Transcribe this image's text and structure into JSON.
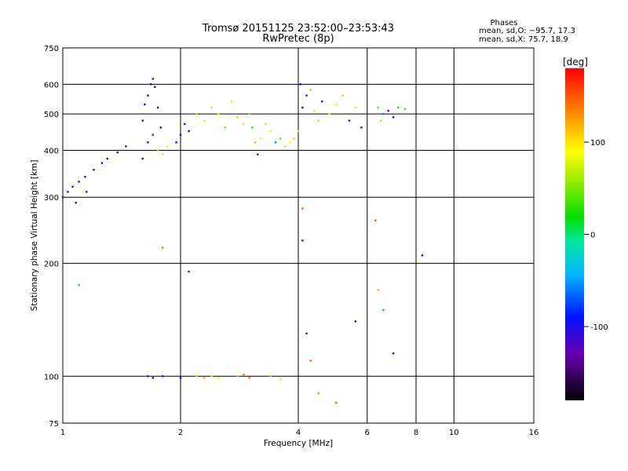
{
  "chart_data": {
    "type": "scatter",
    "title": "Tromsø 20151125 23:52:00–23:53:43",
    "subtitle": "RwPretec (8p)",
    "xlabel": "Frequency [MHz]",
    "ylabel": "Stationary phase Virtual Height [km]",
    "x_scale": "log",
    "y_scale": "log",
    "xlim": [
      1,
      16
    ],
    "ylim": [
      75,
      750
    ],
    "x_ticks": [
      1,
      2,
      4,
      6,
      8,
      10,
      16
    ],
    "y_ticks": [
      75,
      100,
      200,
      300,
      400,
      500,
      600,
      750
    ],
    "grid": true,
    "stats": {
      "heading": "Phases",
      "line_o": "mean, sd,O: −95.7, 17.3",
      "line_x": "mean, sd,X:  75.7, 18.9"
    },
    "colorbar": {
      "label": "[deg]",
      "ticks": [
        100,
        0,
        -100
      ],
      "range": [
        -180,
        180
      ],
      "colormap": "rainbow"
    },
    "series": [
      {
        "values": [
          [
            1.0,
            300,
            -110
          ],
          [
            1.03,
            310,
            -105
          ],
          [
            1.06,
            320,
            -115
          ],
          [
            1.1,
            330,
            -100
          ],
          [
            1.14,
            340,
            -108
          ],
          [
            1.2,
            355,
            -112
          ],
          [
            1.26,
            370,
            -104
          ],
          [
            1.3,
            380,
            -110
          ],
          [
            1.38,
            395,
            -106
          ],
          [
            1.45,
            410,
            -100
          ],
          [
            1.08,
            290,
            -112
          ],
          [
            1.15,
            310,
            -98
          ],
          [
            1.6,
            480,
            -115
          ],
          [
            1.62,
            530,
            -120
          ],
          [
            1.65,
            560,
            -110
          ],
          [
            1.68,
            600,
            -118
          ],
          [
            1.7,
            620,
            -112
          ],
          [
            1.72,
            590,
            -108
          ],
          [
            1.75,
            520,
            -100
          ],
          [
            1.78,
            460,
            -95
          ],
          [
            1.6,
            380,
            -100
          ],
          [
            1.65,
            420,
            -90
          ],
          [
            1.7,
            440,
            -80
          ],
          [
            1.75,
            400,
            60
          ],
          [
            1.8,
            390,
            70
          ],
          [
            1.85,
            410,
            80
          ],
          [
            1.95,
            420,
            -90
          ],
          [
            2.0,
            440,
            -100
          ],
          [
            2.05,
            470,
            -110
          ],
          [
            2.1,
            450,
            -105
          ],
          [
            2.2,
            500,
            60
          ],
          [
            2.3,
            480,
            80
          ],
          [
            2.4,
            520,
            70
          ],
          [
            2.5,
            500,
            90
          ],
          [
            2.6,
            460,
            40
          ],
          [
            2.7,
            540,
            100
          ],
          [
            2.8,
            490,
            60
          ],
          [
            2.9,
            470,
            80
          ],
          [
            3.0,
            500,
            50
          ],
          [
            3.05,
            460,
            30
          ],
          [
            3.1,
            420,
            120
          ],
          [
            3.15,
            390,
            -120
          ],
          [
            3.2,
            430,
            80
          ],
          [
            3.3,
            470,
            60
          ],
          [
            3.4,
            450,
            100
          ],
          [
            3.5,
            420,
            -60
          ],
          [
            3.6,
            430,
            40
          ],
          [
            3.7,
            410,
            70
          ],
          [
            3.8,
            420,
            90
          ],
          [
            3.9,
            430,
            110
          ],
          [
            4.0,
            450,
            80
          ],
          [
            4.05,
            600,
            -110
          ],
          [
            4.1,
            520,
            -100
          ],
          [
            4.2,
            560,
            -95
          ],
          [
            4.3,
            580,
            120
          ],
          [
            4.4,
            510,
            80
          ],
          [
            4.5,
            480,
            60
          ],
          [
            4.6,
            540,
            -100
          ],
          [
            4.8,
            500,
            90
          ],
          [
            5.0,
            530,
            100
          ],
          [
            5.2,
            560,
            110
          ],
          [
            5.4,
            480,
            -120
          ],
          [
            5.6,
            520,
            70
          ],
          [
            5.8,
            460,
            -110
          ],
          [
            6.4,
            520,
            40
          ],
          [
            6.5,
            480,
            60
          ],
          [
            6.6,
            500,
            -60
          ],
          [
            6.8,
            510,
            -120
          ],
          [
            7.0,
            490,
            -110
          ],
          [
            7.2,
            520,
            20
          ],
          [
            7.5,
            515,
            30
          ],
          [
            1.65,
            100,
            -110
          ],
          [
            1.7,
            99,
            -105
          ],
          [
            1.8,
            100,
            -100
          ],
          [
            2.0,
            99,
            -110
          ],
          [
            2.2,
            100,
            110
          ],
          [
            2.3,
            99,
            120
          ],
          [
            2.4,
            100,
            100
          ],
          [
            2.5,
            99,
            90
          ],
          [
            2.8,
            100,
            110
          ],
          [
            2.9,
            101,
            140
          ],
          [
            3.0,
            99,
            130
          ],
          [
            3.4,
            100,
            50
          ],
          [
            3.6,
            98,
            80
          ],
          [
            1.8,
            220,
            140
          ],
          [
            2.1,
            190,
            -130
          ],
          [
            1.1,
            175,
            -40
          ],
          [
            4.1,
            230,
            -110
          ],
          [
            4.1,
            280,
            150
          ],
          [
            4.2,
            130,
            -120
          ],
          [
            4.3,
            110,
            150
          ],
          [
            4.5,
            90,
            130
          ],
          [
            5.0,
            85,
            150
          ],
          [
            6.3,
            260,
            150
          ],
          [
            6.4,
            170,
            120
          ],
          [
            6.6,
            150,
            -50
          ],
          [
            7.0,
            115,
            -100
          ],
          [
            8.3,
            210,
            -110
          ],
          [
            5.6,
            140,
            -110
          ]
        ]
      }
    ]
  }
}
